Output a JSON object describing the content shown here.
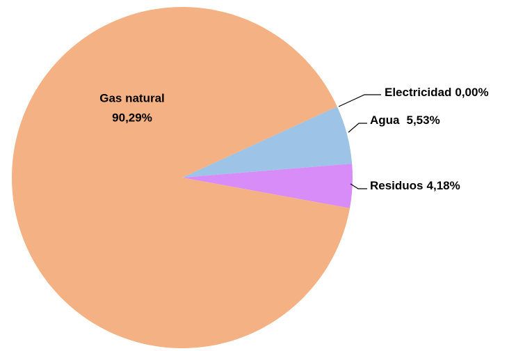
{
  "chart_data": {
    "type": "pie",
    "categories": [
      "Electricidad",
      "Agua",
      "Residuos",
      "Gas natural"
    ],
    "values": [
      0,
      5.53,
      4.18,
      90.29
    ],
    "value_labels": [
      "0,00%",
      "5,53%",
      "4,18%",
      "90,29%"
    ],
    "colors": [
      "#4472c4",
      "#9dc3e6",
      "#d88cf8",
      "#f4b183"
    ]
  }
}
